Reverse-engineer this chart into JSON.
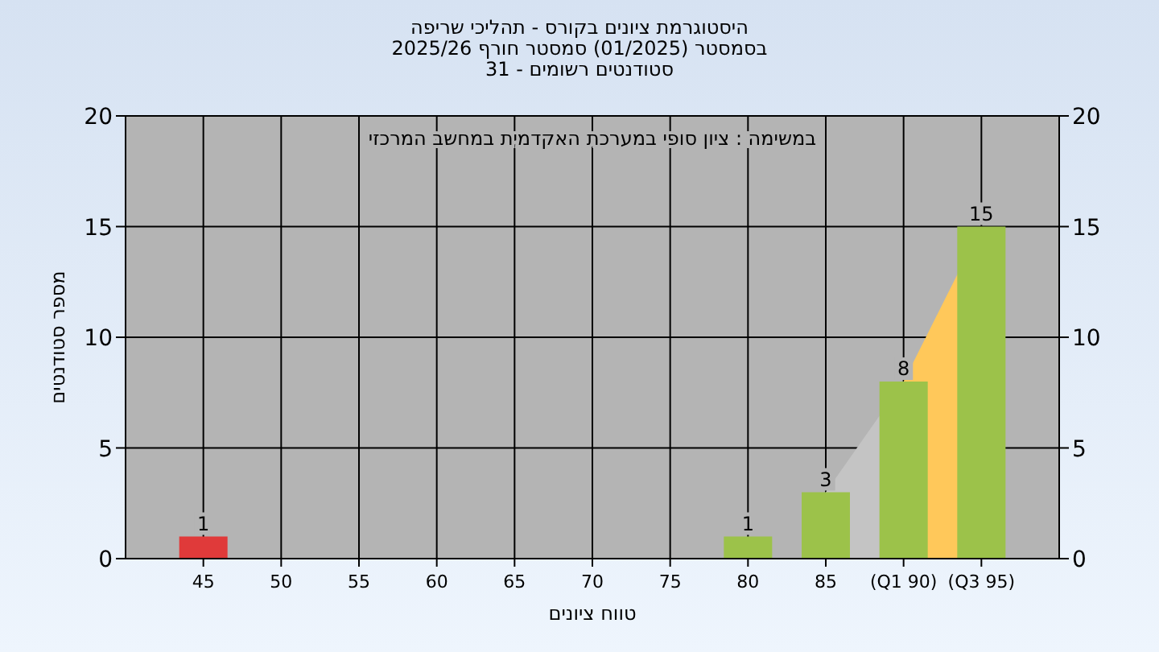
{
  "chart_data": {
    "type": "bar",
    "title": "היסטוגרמת ציונים בקורס - תהליכי שריפה\nבסמסטר  (01/2025)  סמסטר חורף 2025/26\nסטודנטים רשומים - 31",
    "xlabel": "טווח ציונים",
    "ylabel": "מספר סטודנטים",
    "annotations": [
      "במשימה : ציון סופי במערכת האקדמית במחשב המרכזי"
    ],
    "categories": [
      "45",
      "50",
      "55",
      "60",
      "65",
      "70",
      "75",
      "80",
      "85",
      "(Q1 90)",
      "(Q3 95)"
    ],
    "series": [
      {
        "type": "area",
        "color": "#c4c4c4",
        "values": [
          null,
          null,
          null,
          null,
          null,
          null,
          null,
          null,
          3,
          8,
          null
        ]
      },
      {
        "type": "area",
        "color": "#ffc85a",
        "values": [
          null,
          null,
          null,
          null,
          null,
          null,
          null,
          null,
          null,
          8,
          15
        ]
      },
      {
        "colors": [
          "#e03a3a",
          "#9cc24a",
          "#9cc24a",
          "#9cc24a",
          "#9cc24a",
          "#9cc24a",
          "#9cc24a",
          "#9cc24a",
          "#9cc24a",
          "#9cc24a",
          "#9cc24a"
        ],
        "values": [
          1,
          0,
          0,
          0,
          0,
          0,
          0,
          1,
          3,
          8,
          15
        ],
        "value_labels": [
          "1",
          null,
          null,
          null,
          null,
          null,
          null,
          "1",
          "3",
          "8",
          "15"
        ]
      }
    ],
    "ylim": [
      0,
      20
    ],
    "yticks": [
      0,
      5,
      10,
      15,
      20
    ],
    "y2lim": [
      0,
      20
    ],
    "y2ticks": [
      0,
      5,
      10,
      15,
      20
    ],
    "grid": true
  }
}
